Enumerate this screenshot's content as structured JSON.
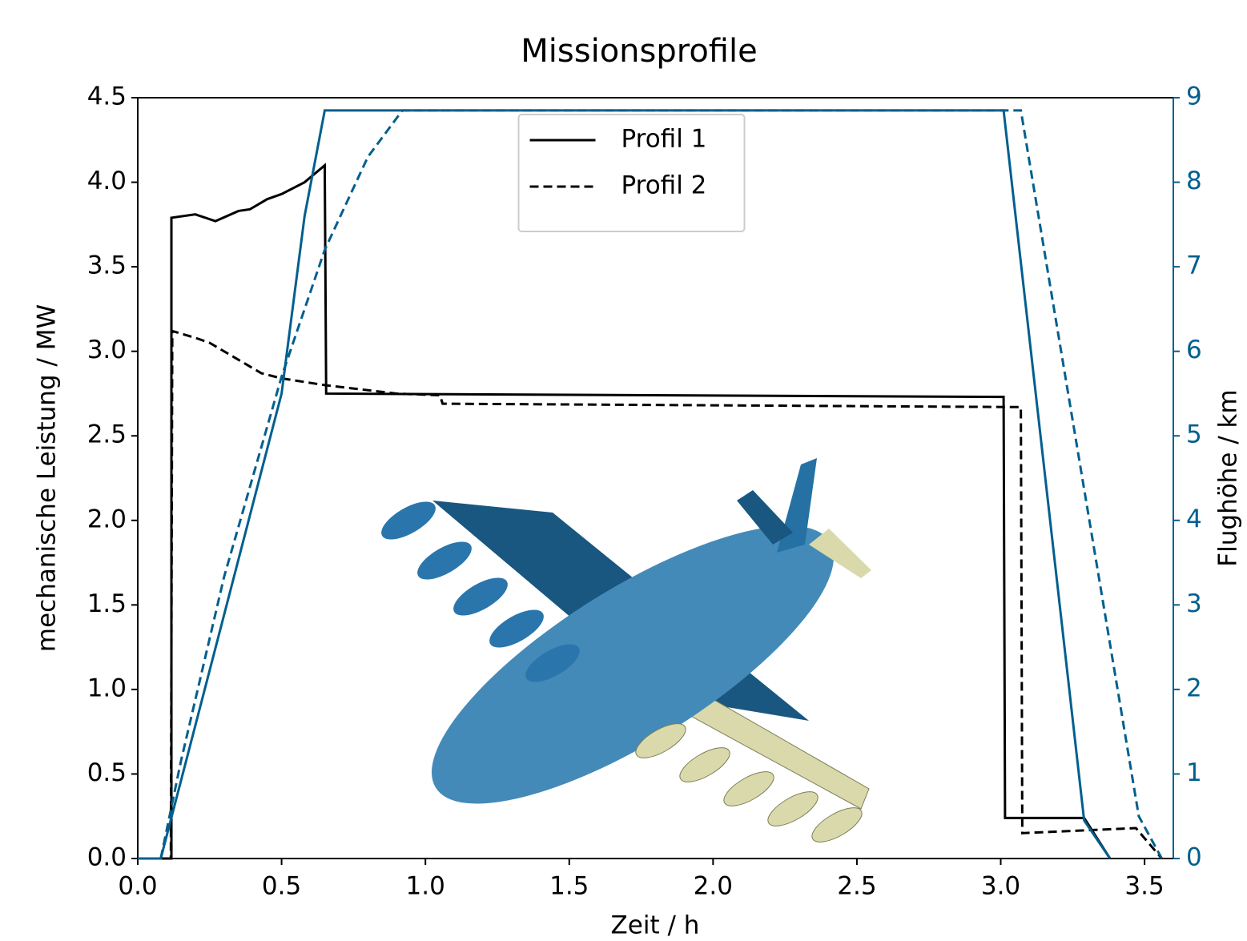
{
  "chart_data": {
    "type": "line",
    "title": "Missionsprofile",
    "xlabel": "Zeit / h",
    "ylabel": "mechanische Leistung / MW",
    "y2label": "Flughöhe / km",
    "xlim": [
      0,
      3.6
    ],
    "ylim": [
      0,
      4.5
    ],
    "y2lim": [
      0,
      9
    ],
    "xticks": [
      {
        "value": 0,
        "label": "0.0"
      },
      {
        "value": 0.5,
        "label": "0.5"
      },
      {
        "value": 1,
        "label": "1.0"
      },
      {
        "value": 1.5,
        "label": "1.5"
      },
      {
        "value": 2,
        "label": "2.0"
      },
      {
        "value": 2.5,
        "label": "2.5"
      },
      {
        "value": 3,
        "label": "3.0"
      },
      {
        "value": 3.5,
        "label": "3.5"
      }
    ],
    "yticks": [
      {
        "value": 0,
        "label": "0.0"
      },
      {
        "value": 0.5,
        "label": "0.5"
      },
      {
        "value": 1,
        "label": "1.0"
      },
      {
        "value": 1.5,
        "label": "1.5"
      },
      {
        "value": 2,
        "label": "2.0"
      },
      {
        "value": 2.5,
        "label": "2.5"
      },
      {
        "value": 3,
        "label": "3.0"
      },
      {
        "value": 3.5,
        "label": "3.5"
      },
      {
        "value": 4,
        "label": "4.0"
      },
      {
        "value": 4.5,
        "label": "4.5"
      }
    ],
    "y2ticks": [
      0,
      1,
      2,
      3,
      4,
      5,
      6,
      7,
      8,
      9
    ],
    "y2color": "#005f8e",
    "legend": "upper center",
    "series": [
      {
        "name": "Profil 1",
        "color": "#000000",
        "style": "solid",
        "x": [
          0,
          0.117,
          0.117,
          0.2,
          0.27,
          0.35,
          0.39,
          0.45,
          0.5,
          0.58,
          0.65,
          0.655,
          3.01,
          3.015,
          3.29,
          3.38
        ],
        "values": [
          0,
          0,
          3.79,
          3.81,
          3.77,
          3.83,
          3.84,
          3.9,
          3.93,
          4.0,
          4.1,
          2.75,
          2.73,
          0.24,
          0.24,
          0
        ]
      },
      {
        "name": "Profil 2",
        "color": "#000000",
        "style": "dashed",
        "x": [
          0,
          0.115,
          0.12,
          0.2,
          0.25,
          0.32,
          0.43,
          0.5,
          0.65,
          0.9,
          1.05,
          1.06,
          3.07,
          3.075,
          3.47,
          3.56
        ],
        "values": [
          0,
          0,
          3.12,
          3.08,
          3.05,
          2.98,
          2.87,
          2.84,
          2.8,
          2.75,
          2.74,
          2.69,
          2.67,
          0.15,
          0.18,
          0
        ]
      },
      {
        "color": "#005f8e",
        "style": "solid",
        "axis": "y2",
        "x": [
          0,
          0.08,
          0.5,
          0.58,
          0.65,
          3.01,
          3.29,
          3.38
        ],
        "values": [
          0,
          0,
          5.5,
          7.6,
          8.85,
          8.85,
          0.45,
          0
        ]
      },
      {
        "color": "#005f8e",
        "style": "dashed",
        "axis": "y2",
        "x": [
          0.08,
          0.15,
          0.3,
          0.5,
          0.65,
          0.8,
          0.92,
          3.07,
          3.48,
          3.56
        ],
        "values": [
          0,
          1.15,
          3.33,
          5.7,
          7.2,
          8.3,
          8.85,
          8.85,
          0.5,
          0
        ]
      }
    ]
  }
}
